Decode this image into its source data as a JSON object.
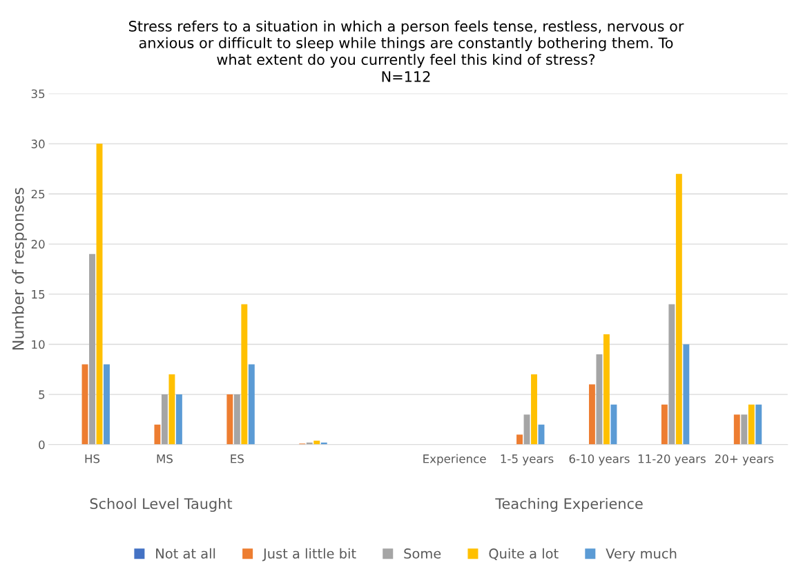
{
  "chart_data": {
    "type": "bar",
    "title": "Stress refers to a situation in which a person feels tense, restless, nervous or\nanxious or difficult to sleep while things are constantly bothering them. To\nwhat extent do you currently feel this kind of stress?",
    "subtitle": "N=112",
    "ylabel": "Number of responses",
    "categories": [
      "HS",
      "MS",
      "ES",
      null,
      null,
      "Experience",
      "1-5 years",
      "6-10 years",
      "11-20 years",
      "20+ years"
    ],
    "series": [
      {
        "name": "Not at all",
        "color": "#4472c4",
        "values": [
          0,
          0,
          0,
          0,
          null,
          null,
          0,
          0,
          0,
          0
        ]
      },
      {
        "name": "Just a little bit",
        "color": "#ed7d31",
        "values": [
          8,
          2,
          5,
          0.1,
          null,
          null,
          1,
          6,
          4,
          3
        ]
      },
      {
        "name": "Some",
        "color": "#a5a5a5",
        "values": [
          19,
          5,
          5,
          0.2,
          null,
          null,
          3,
          9,
          14,
          3
        ]
      },
      {
        "name": "Quite a lot",
        "color": "#ffc000",
        "values": [
          30,
          7,
          14,
          0.4,
          null,
          null,
          7,
          11,
          27,
          4
        ]
      },
      {
        "name": "Very much",
        "color": "#5b9bd5",
        "values": [
          8,
          5,
          8,
          0.2,
          null,
          null,
          2,
          4,
          10,
          4
        ]
      }
    ],
    "ylim": [
      0,
      35
    ],
    "yticks": [
      0,
      5,
      10,
      15,
      20,
      25,
      30,
      35
    ],
    "grid": "y",
    "legend": "bottom",
    "annotations": [
      "School Level Taught",
      "Teaching Experience"
    ]
  }
}
